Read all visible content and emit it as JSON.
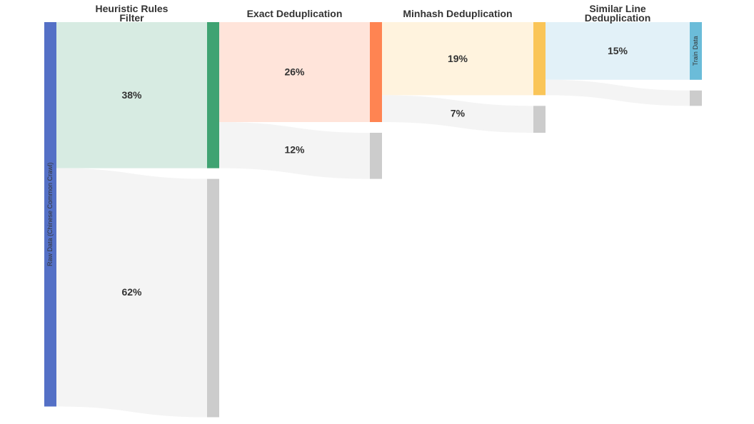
{
  "chart_data": {
    "type": "sankey",
    "stages": [
      {
        "title_lines": [
          "Heuristic Rules",
          "Filter"
        ]
      },
      {
        "title_lines": [
          "Exact Deduplication"
        ]
      },
      {
        "title_lines": [
          "Minhash Deduplication"
        ]
      },
      {
        "title_lines": [
          "Similar Line",
          "Deduplication"
        ]
      }
    ],
    "source": {
      "label": "Raw Data (Chinese Common Crawl)",
      "value": 100,
      "color": "#5470c6"
    },
    "sink": {
      "label": "Train Data",
      "color": "#6bbcd9"
    },
    "flows": [
      {
        "stage": 0,
        "kept": 38,
        "kept_label": "38%",
        "removed": 62,
        "removed_label": "62%",
        "node_color": "#3fa372",
        "band_color": "#d7ebe2"
      },
      {
        "stage": 1,
        "kept": 26,
        "kept_label": "26%",
        "removed": 12,
        "removed_label": "12%",
        "node_color": "#ff8452",
        "band_color": "#ffe4da"
      },
      {
        "stage": 2,
        "kept": 19,
        "kept_label": "19%",
        "removed": 7,
        "removed_label": "7%",
        "node_color": "#fac558",
        "band_color": "#fff3de"
      },
      {
        "stage": 3,
        "kept": 15,
        "kept_label": "15%",
        "removed": 4,
        "removed_label": "",
        "node_color": "#6bbcd9",
        "band_color": "#e2f1f8"
      }
    ],
    "removed_band_color": "#f4f4f4",
    "removed_node_color": "#cccccc"
  }
}
